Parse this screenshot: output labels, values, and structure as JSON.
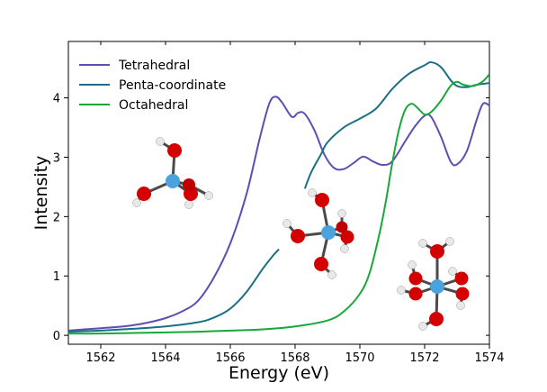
{
  "chart_data": {
    "type": "line",
    "xlabel": "Energy (eV)",
    "ylabel": "Intensity",
    "xlim": [
      1561,
      1574
    ],
    "ylim": [
      -0.15,
      4.95
    ],
    "xticks": [
      1562,
      1564,
      1566,
      1568,
      1570,
      1572,
      1574
    ],
    "yticks": [
      0,
      1,
      2,
      3,
      4
    ],
    "grid": false,
    "legend_position": "top-left",
    "series": [
      {
        "name": "Tetrahedral",
        "color": "#5b4fb5",
        "points": [
          [
            1561.0,
            0.08
          ],
          [
            1561.5,
            0.1
          ],
          [
            1562.0,
            0.12
          ],
          [
            1562.5,
            0.14
          ],
          [
            1563.0,
            0.17
          ],
          [
            1563.5,
            0.22
          ],
          [
            1564.0,
            0.29
          ],
          [
            1564.5,
            0.4
          ],
          [
            1565.0,
            0.58
          ],
          [
            1565.5,
            0.98
          ],
          [
            1566.0,
            1.55
          ],
          [
            1566.5,
            2.38
          ],
          [
            1566.9,
            3.3
          ],
          [
            1567.2,
            3.9
          ],
          [
            1567.4,
            4.02
          ],
          [
            1567.6,
            3.92
          ],
          [
            1567.9,
            3.68
          ],
          [
            1568.1,
            3.75
          ],
          [
            1568.3,
            3.73
          ],
          [
            1568.6,
            3.45
          ],
          [
            1568.9,
            3.05
          ],
          [
            1569.2,
            2.82
          ],
          [
            1569.5,
            2.8
          ],
          [
            1569.8,
            2.9
          ],
          [
            1570.1,
            3.01
          ],
          [
            1570.4,
            2.93
          ],
          [
            1570.7,
            2.87
          ],
          [
            1571.0,
            2.93
          ],
          [
            1571.4,
            3.27
          ],
          [
            1571.7,
            3.52
          ],
          [
            1572.0,
            3.7
          ],
          [
            1572.2,
            3.68
          ],
          [
            1572.5,
            3.35
          ],
          [
            1572.8,
            2.93
          ],
          [
            1573.0,
            2.88
          ],
          [
            1573.3,
            3.1
          ],
          [
            1573.6,
            3.62
          ],
          [
            1573.8,
            3.9
          ],
          [
            1574.0,
            3.87
          ]
        ]
      },
      {
        "name": "Penta-coordinate",
        "color": "#1a6f86",
        "segments": [
          [
            [
              1561.0,
              0.06
            ],
            [
              1562.0,
              0.08
            ],
            [
              1563.0,
              0.11
            ],
            [
              1564.0,
              0.15
            ],
            [
              1565.0,
              0.22
            ],
            [
              1565.5,
              0.3
            ],
            [
              1566.0,
              0.45
            ],
            [
              1566.5,
              0.73
            ],
            [
              1567.0,
              1.12
            ],
            [
              1567.3,
              1.33
            ],
            [
              1567.5,
              1.45
            ]
          ],
          [
            [
              1568.3,
              2.47
            ],
            [
              1568.5,
              2.75
            ],
            [
              1568.8,
              3.05
            ],
            [
              1569.0,
              3.25
            ],
            [
              1569.5,
              3.5
            ],
            [
              1570.0,
              3.65
            ],
            [
              1570.5,
              3.82
            ],
            [
              1571.0,
              4.15
            ],
            [
              1571.5,
              4.4
            ],
            [
              1572.0,
              4.55
            ],
            [
              1572.2,
              4.6
            ],
            [
              1572.5,
              4.52
            ],
            [
              1572.8,
              4.3
            ],
            [
              1573.0,
              4.2
            ],
            [
              1573.3,
              4.18
            ],
            [
              1573.6,
              4.22
            ],
            [
              1574.0,
              4.25
            ]
          ]
        ]
      },
      {
        "name": "Octahedral",
        "color": "#18a83a",
        "points": [
          [
            1561.0,
            0.03
          ],
          [
            1562.0,
            0.03
          ],
          [
            1563.0,
            0.04
          ],
          [
            1564.0,
            0.05
          ],
          [
            1565.0,
            0.06
          ],
          [
            1566.0,
            0.08
          ],
          [
            1567.0,
            0.1
          ],
          [
            1568.0,
            0.15
          ],
          [
            1569.0,
            0.25
          ],
          [
            1569.5,
            0.4
          ],
          [
            1570.0,
            0.7
          ],
          [
            1570.3,
            1.05
          ],
          [
            1570.6,
            1.7
          ],
          [
            1570.8,
            2.25
          ],
          [
            1571.0,
            2.9
          ],
          [
            1571.2,
            3.45
          ],
          [
            1571.4,
            3.8
          ],
          [
            1571.6,
            3.9
          ],
          [
            1571.8,
            3.82
          ],
          [
            1572.0,
            3.72
          ],
          [
            1572.2,
            3.76
          ],
          [
            1572.5,
            3.95
          ],
          [
            1572.8,
            4.2
          ],
          [
            1573.0,
            4.27
          ],
          [
            1573.2,
            4.22
          ],
          [
            1573.5,
            4.2
          ],
          [
            1573.8,
            4.28
          ],
          [
            1574.0,
            4.4
          ]
        ]
      }
    ]
  },
  "icons": [
    "tetrahedral-molecule-icon",
    "penta-coordinate-molecule-icon",
    "octahedral-molecule-icon"
  ]
}
